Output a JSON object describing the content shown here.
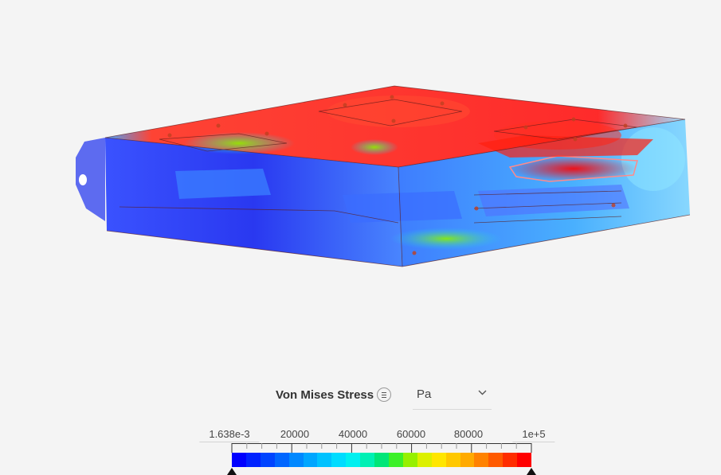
{
  "legend": {
    "title": "Von Mises Stress",
    "menu_icon": "menu-lines-icon",
    "unit": {
      "selected": "Pa",
      "icon": "chevron-down-icon"
    },
    "min_label": "1.638e-3",
    "max_label": "1e+5",
    "tick_labels": [
      "20000",
      "40000",
      "60000",
      "80000"
    ],
    "colors": [
      "#0000ff",
      "#0022ff",
      "#0044ff",
      "#0066ff",
      "#0088ff",
      "#00a6ff",
      "#00c2ff",
      "#00dcff",
      "#00f0f0",
      "#00f0b4",
      "#00e678",
      "#3cf028",
      "#96f000",
      "#dcf000",
      "#ffe600",
      "#ffc800",
      "#ffaa00",
      "#ff8200",
      "#ff5a00",
      "#ff2d00",
      "#ff0000"
    ]
  },
  "viewport": {
    "model": "stress-result-model"
  }
}
